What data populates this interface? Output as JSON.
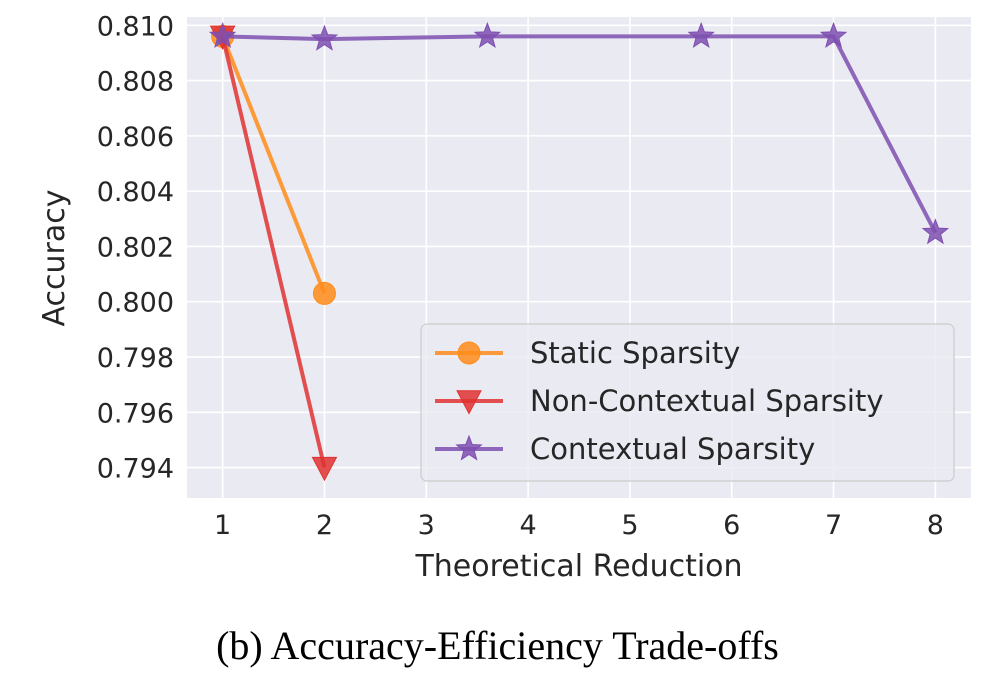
{
  "caption": "(b) Accuracy-Efficiency Trade-offs",
  "chart_data": {
    "type": "line",
    "xlabel": "Theoretical Reduction",
    "ylabel": "Accuracy",
    "xlim": [
      0.65,
      8.35
    ],
    "ylim": [
      0.7929,
      0.8103
    ],
    "xticks": [
      1,
      2,
      3,
      4,
      5,
      6,
      7,
      8
    ],
    "yticks": [
      0.794,
      0.796,
      0.798,
      0.8,
      0.802,
      0.804,
      0.806,
      0.808,
      0.81
    ],
    "ytick_labels": [
      "0.794",
      "0.796",
      "0.798",
      "0.800",
      "0.802",
      "0.804",
      "0.806",
      "0.808",
      "0.810"
    ],
    "grid": true,
    "legend_position": "lower-right",
    "series": [
      {
        "name": "Static Sparsity",
        "color": "#ff8c1a",
        "marker": "circle",
        "x": [
          1,
          2
        ],
        "y": [
          0.8096,
          0.8003
        ]
      },
      {
        "name": "Non-Contextual Sparsity",
        "color": "#e03131",
        "marker": "triangle-down",
        "x": [
          1,
          2
        ],
        "y": [
          0.8096,
          0.794
        ]
      },
      {
        "name": "Contextual Sparsity",
        "color": "#7e4fb0",
        "marker": "star",
        "x": [
          1,
          2,
          3.6,
          5.7,
          7,
          8
        ],
        "y": [
          0.8096,
          0.8095,
          0.8096,
          0.8096,
          0.8096,
          0.8025
        ]
      }
    ]
  }
}
